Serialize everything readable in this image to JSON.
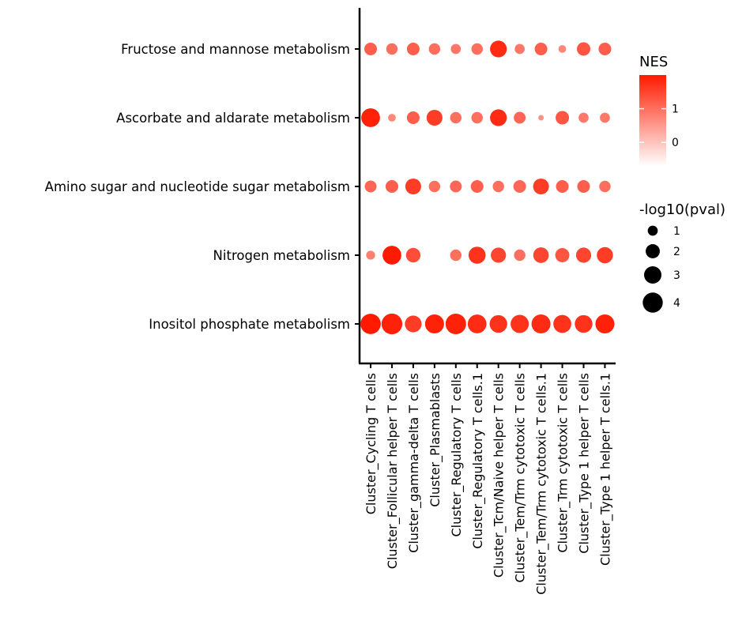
{
  "chart_data": {
    "type": "dotplot",
    "title": "",
    "xlabel": "",
    "ylabel": "",
    "x_categories": [
      "Cluster_Cycling T cells",
      "Cluster_Follicular helper T cells",
      "Cluster_gamma-delta T cells",
      "Cluster_Plasmablasts",
      "Cluster_Regulatory T cells",
      "Cluster_Regulatory T cells.1",
      "Cluster_Tcm/Naive helper T cells",
      "Cluster_Tem/Trm cytotoxic T cells",
      "Cluster_Tem/Trm cytotoxic T cells.1",
      "Cluster_Trm cytotoxic T cells",
      "Cluster_Type 1 helper T cells",
      "Cluster_Type 1 helper T cells.1"
    ],
    "y_categories": [
      "Fructose and mannose metabolism",
      "Ascorbate and aldarate metabolism",
      "Amino sugar and nucleotide sugar metabolism",
      "Nitrogen metabolism",
      "Inositol phosphate metabolism"
    ],
    "points": [
      {
        "x": "Cluster_Cycling T cells",
        "y": "Fructose and mannose metabolism",
        "nes": 1.2,
        "log10p": 1.6
      },
      {
        "x": "Cluster_Follicular helper T cells",
        "y": "Fructose and mannose metabolism",
        "nes": 1.0,
        "log10p": 1.3
      },
      {
        "x": "Cluster_gamma-delta T cells",
        "y": "Fructose and mannose metabolism",
        "nes": 1.2,
        "log10p": 1.6
      },
      {
        "x": "Cluster_Plasmablasts",
        "y": "Fructose and mannose metabolism",
        "nes": 1.0,
        "log10p": 1.3
      },
      {
        "x": "Cluster_Regulatory T cells",
        "y": "Fructose and mannose metabolism",
        "nes": 0.9,
        "log10p": 1.0
      },
      {
        "x": "Cluster_Regulatory T cells.1",
        "y": "Fructose and mannose metabolism",
        "nes": 1.0,
        "log10p": 1.3
      },
      {
        "x": "Cluster_Tcm/Naive helper T cells",
        "y": "Fructose and mannose metabolism",
        "nes": 1.8,
        "log10p": 2.8
      },
      {
        "x": "Cluster_Tem/Trm cytotoxic T cells",
        "y": "Fructose and mannose metabolism",
        "nes": 0.9,
        "log10p": 1.0
      },
      {
        "x": "Cluster_Tem/Trm cytotoxic T cells.1",
        "y": "Fructose and mannose metabolism",
        "nes": 1.2,
        "log10p": 1.6
      },
      {
        "x": "Cluster_Trm cytotoxic T cells",
        "y": "Fructose and mannose metabolism",
        "nes": 0.7,
        "log10p": 0.6
      },
      {
        "x": "Cluster_Type 1 helper T cells",
        "y": "Fructose and mannose metabolism",
        "nes": 1.3,
        "log10p": 1.8
      },
      {
        "x": "Cluster_Type 1 helper T cells.1",
        "y": "Fructose and mannose metabolism",
        "nes": 1.2,
        "log10p": 1.6
      },
      {
        "x": "Cluster_Cycling T cells",
        "y": "Ascorbate and aldarate metabolism",
        "nes": 1.9,
        "log10p": 3.5
      },
      {
        "x": "Cluster_Follicular helper T cells",
        "y": "Ascorbate and aldarate metabolism",
        "nes": 0.7,
        "log10p": 0.6
      },
      {
        "x": "Cluster_gamma-delta T cells",
        "y": "Ascorbate and aldarate metabolism",
        "nes": 1.2,
        "log10p": 1.6
      },
      {
        "x": "Cluster_Plasmablasts",
        "y": "Ascorbate and aldarate metabolism",
        "nes": 1.6,
        "log10p": 2.5
      },
      {
        "x": "Cluster_Regulatory T cells",
        "y": "Ascorbate and aldarate metabolism",
        "nes": 1.0,
        "log10p": 1.3
      },
      {
        "x": "Cluster_Regulatory T cells.1",
        "y": "Ascorbate and aldarate metabolism",
        "nes": 1.0,
        "log10p": 1.3
      },
      {
        "x": "Cluster_Tcm/Naive helper T cells",
        "y": "Ascorbate and aldarate metabolism",
        "nes": 1.8,
        "log10p": 2.8
      },
      {
        "x": "Cluster_Tem/Trm cytotoxic T cells",
        "y": "Ascorbate and aldarate metabolism",
        "nes": 1.1,
        "log10p": 1.4
      },
      {
        "x": "Cluster_Tem/Trm cytotoxic T cells.1",
        "y": "Ascorbate and aldarate metabolism",
        "nes": 0.6,
        "log10p": 0.3
      },
      {
        "x": "Cluster_Trm cytotoxic T cells",
        "y": "Ascorbate and aldarate metabolism",
        "nes": 1.3,
        "log10p": 1.8
      },
      {
        "x": "Cluster_Type 1 helper T cells",
        "y": "Ascorbate and aldarate metabolism",
        "nes": 0.9,
        "log10p": 1.0
      },
      {
        "x": "Cluster_Type 1 helper T cells.1",
        "y": "Ascorbate and aldarate metabolism",
        "nes": 0.9,
        "log10p": 1.0
      },
      {
        "x": "Cluster_Cycling T cells",
        "y": "Amino sugar and nucleotide sugar metabolism",
        "nes": 1.1,
        "log10p": 1.4
      },
      {
        "x": "Cluster_Follicular helper T cells",
        "y": "Amino sugar and nucleotide sugar metabolism",
        "nes": 1.2,
        "log10p": 1.6
      },
      {
        "x": "Cluster_gamma-delta T cells",
        "y": "Amino sugar and nucleotide sugar metabolism",
        "nes": 1.6,
        "log10p": 2.5
      },
      {
        "x": "Cluster_Plasmablasts",
        "y": "Amino sugar and nucleotide sugar metabolism",
        "nes": 1.0,
        "log10p": 1.3
      },
      {
        "x": "Cluster_Regulatory T cells",
        "y": "Amino sugar and nucleotide sugar metabolism",
        "nes": 1.1,
        "log10p": 1.4
      },
      {
        "x": "Cluster_Regulatory T cells.1",
        "y": "Amino sugar and nucleotide sugar metabolism",
        "nes": 1.2,
        "log10p": 1.6
      },
      {
        "x": "Cluster_Tcm/Naive helper T cells",
        "y": "Amino sugar and nucleotide sugar metabolism",
        "nes": 1.0,
        "log10p": 1.3
      },
      {
        "x": "Cluster_Tem/Trm cytotoxic T cells",
        "y": "Amino sugar and nucleotide sugar metabolism",
        "nes": 1.1,
        "log10p": 1.6
      },
      {
        "x": "Cluster_Tem/Trm cytotoxic T cells.1",
        "y": "Amino sugar and nucleotide sugar metabolism",
        "nes": 1.6,
        "log10p": 2.5
      },
      {
        "x": "Cluster_Trm cytotoxic T cells",
        "y": "Amino sugar and nucleotide sugar metabolism",
        "nes": 1.2,
        "log10p": 1.6
      },
      {
        "x": "Cluster_Type 1 helper T cells",
        "y": "Amino sugar and nucleotide sugar metabolism",
        "nes": 1.2,
        "log10p": 1.6
      },
      {
        "x": "Cluster_Type 1 helper T cells.1",
        "y": "Amino sugar and nucleotide sugar metabolism",
        "nes": 1.0,
        "log10p": 1.3
      },
      {
        "x": "Cluster_Cycling T cells",
        "y": "Nitrogen metabolism",
        "nes": 0.8,
        "log10p": 0.8
      },
      {
        "x": "Cluster_Follicular helper T cells",
        "y": "Nitrogen metabolism",
        "nes": 2.0,
        "log10p": 3.5
      },
      {
        "x": "Cluster_gamma-delta T cells",
        "y": "Nitrogen metabolism",
        "nes": 1.4,
        "log10p": 2.1
      },
      {
        "x": "Cluster_Regulatory T cells",
        "y": "Nitrogen metabolism",
        "nes": 1.0,
        "log10p": 1.3
      },
      {
        "x": "Cluster_Regulatory T cells.1",
        "y": "Nitrogen metabolism",
        "nes": 1.7,
        "log10p": 2.9
      },
      {
        "x": "Cluster_Tcm/Naive helper T cells",
        "y": "Nitrogen metabolism",
        "nes": 1.5,
        "log10p": 2.3
      },
      {
        "x": "Cluster_Tem/Trm cytotoxic T cells",
        "y": "Nitrogen metabolism",
        "nes": 1.0,
        "log10p": 1.3
      },
      {
        "x": "Cluster_Tem/Trm cytotoxic T cells.1",
        "y": "Nitrogen metabolism",
        "nes": 1.5,
        "log10p": 2.4
      },
      {
        "x": "Cluster_Trm cytotoxic T cells",
        "y": "Nitrogen metabolism",
        "nes": 1.3,
        "log10p": 2.0
      },
      {
        "x": "Cluster_Type 1 helper T cells",
        "y": "Nitrogen metabolism",
        "nes": 1.5,
        "log10p": 2.3
      },
      {
        "x": "Cluster_Type 1 helper T cells.1",
        "y": "Nitrogen metabolism",
        "nes": 1.6,
        "log10p": 2.6
      },
      {
        "x": "Cluster_Cycling T cells",
        "y": "Inositol phosphate metabolism",
        "nes": 2.0,
        "log10p": 4.1
      },
      {
        "x": "Cluster_Follicular helper T cells",
        "y": "Inositol phosphate metabolism",
        "nes": 1.9,
        "log10p": 4.3
      },
      {
        "x": "Cluster_gamma-delta T cells",
        "y": "Inositol phosphate metabolism",
        "nes": 1.6,
        "log10p": 2.8
      },
      {
        "x": "Cluster_Plasmablasts",
        "y": "Inositol phosphate metabolism",
        "nes": 1.9,
        "log10p": 3.6
      },
      {
        "x": "Cluster_Regulatory T cells",
        "y": "Inositol phosphate metabolism",
        "nes": 1.9,
        "log10p": 4.2
      },
      {
        "x": "Cluster_Regulatory T cells.1",
        "y": "Inositol phosphate metabolism",
        "nes": 1.8,
        "log10p": 3.5
      },
      {
        "x": "Cluster_Tcm/Naive helper T cells",
        "y": "Inositol phosphate metabolism",
        "nes": 1.7,
        "log10p": 3.1
      },
      {
        "x": "Cluster_Tem/Trm cytotoxic T cells",
        "y": "Inositol phosphate metabolism",
        "nes": 1.7,
        "log10p": 3.3
      },
      {
        "x": "Cluster_Tem/Trm cytotoxic T cells.1",
        "y": "Inositol phosphate metabolism",
        "nes": 1.8,
        "log10p": 3.6
      },
      {
        "x": "Cluster_Trm cytotoxic T cells",
        "y": "Inositol phosphate metabolism",
        "nes": 1.7,
        "log10p": 3.2
      },
      {
        "x": "Cluster_Type 1 helper T cells",
        "y": "Inositol phosphate metabolism",
        "nes": 1.7,
        "log10p": 3.1
      },
      {
        "x": "Cluster_Type 1 helper T cells.1",
        "y": "Inositol phosphate metabolism",
        "nes": 1.9,
        "log10p": 3.6
      }
    ],
    "color_legend": {
      "title": "NES",
      "ticks": [
        0,
        1
      ],
      "range": [
        -0.7,
        2.0
      ],
      "low_color": "#ffffff",
      "high_color": "#ff1a00"
    },
    "size_legend": {
      "title": "-log10(pval)",
      "values": [
        1,
        2,
        3,
        4
      ]
    }
  }
}
